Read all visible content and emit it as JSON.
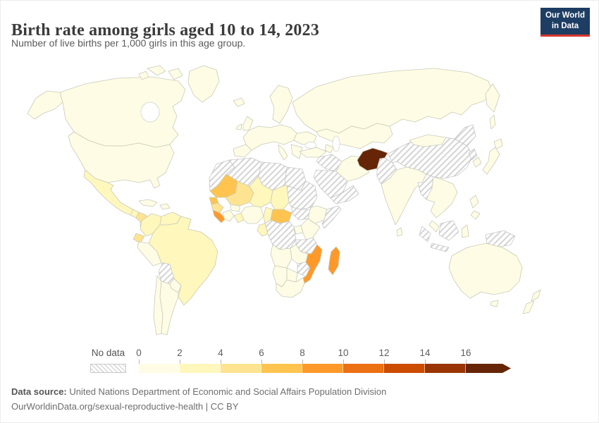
{
  "header": {
    "title": "Birth rate among girls aged 10 to 14, 2023",
    "subtitle": "Number of live births per 1,000 girls in this age group.",
    "logo_line1": "Our World",
    "logo_line2": "in Data",
    "logo_bg": "#1d3d63",
    "logo_accent": "#d7382e"
  },
  "legend": {
    "no_data_label": "No data",
    "tick_labels": [
      "0",
      "2",
      "4",
      "6",
      "8",
      "10",
      "12",
      "14",
      "16"
    ]
  },
  "footer": {
    "source_label": "Data source:",
    "source_text": " United Nations Department of Economic and Social Affairs Population Division",
    "link_text": "OurWorldinData.org/sexual-reproductive-health | CC BY"
  },
  "chart_data": {
    "type": "heatmap",
    "subtype": "world-choropleth",
    "title": "Birth rate among girls aged 10 to 14, 2023",
    "unit": "live births per 1,000 girls in this age group",
    "year": 2023,
    "legend_position": "bottom",
    "bins": [
      {
        "label": "0-2",
        "color": "#fefce4"
      },
      {
        "label": "2-4",
        "color": "#fff7bc"
      },
      {
        "label": "4-6",
        "color": "#fee391"
      },
      {
        "label": "6-8",
        "color": "#fec44f"
      },
      {
        "label": "8-10",
        "color": "#fe9929"
      },
      {
        "label": "10-12",
        "color": "#ec7014"
      },
      {
        "label": "12-14",
        "color": "#cc4c02"
      },
      {
        "label": "14-16",
        "color": "#993404"
      },
      {
        "label": "16+",
        "color": "#662506"
      },
      {
        "label": "no-data",
        "color": "hatch"
      }
    ],
    "countries": {
      "united-states": "0-2",
      "canada": "0-2",
      "greenland": "0-2",
      "mexico": "2-4",
      "guatemala": "2-4",
      "honduras-nicaragua": "4-6",
      "costa-rica-panama": "0-2",
      "cuba": "0-2",
      "hispaniola": "0-2",
      "colombia": "2-4",
      "venezuela": "2-4",
      "guyanas": "0-2",
      "ecuador": "4-6",
      "peru": "0-2",
      "brazil": "2-4",
      "bolivia": "no-data",
      "paraguay": "0-2",
      "chile": "0-2",
      "argentina": "0-2",
      "europe": "0-2",
      "russia": "0-2",
      "kazakhstan-central-asia": "0-2",
      "turkey": "0-2",
      "caucasus": "0-2",
      "syria-iraq": "no-data",
      "saudi-arabia": "no-data",
      "yemen-oman": "no-data",
      "iran": "0-2",
      "afghanistan": "16+",
      "pakistan": "no-data",
      "india": "0-2",
      "sri-lanka": "0-2",
      "china": "no-data",
      "mongolia": "0-2",
      "north-korea": "no-data",
      "south-korea": "0-2",
      "japan": "0-2",
      "myanmar": "no-data",
      "indochina": "0-2",
      "malaysia": "0-2",
      "philippines": "0-2",
      "indonesia": "no-data",
      "sulawesi": "0-2",
      "papua-new-guinea": "no-data",
      "australia": "0-2",
      "new-zealand": "0-2",
      "morocco-western-sahara": "no-data",
      "algeria": "no-data",
      "libya": "no-data",
      "egypt": "no-data",
      "mauritania": "6-8",
      "mali": "4-6",
      "niger": "2-4",
      "chad": "2-4",
      "sudan": "no-data",
      "senegal": "6-8",
      "guinea": "4-6",
      "sierra-leone-liberia": "8-10",
      "ivory-coast": "0-2",
      "ghana-togo-benin": "2-4",
      "burkina-faso": "0-2",
      "nigeria": "0-2",
      "cameroon": "2-4",
      "central-african-republic": "6-8",
      "south-sudan": "no-data",
      "ethiopia": "0-2",
      "somalia": "no-data",
      "dr-congo": "no-data",
      "gabon-congo": "2-4",
      "uganda": "0-2",
      "kenya": "0-2",
      "tanzania": "no-data",
      "angola": "0-2",
      "zambia": "0-2",
      "zimbabwe": "no-data",
      "mozambique": "8-10",
      "botswana": "0-2",
      "namibia": "0-2",
      "south-africa": "0-2",
      "madagascar": "8-10"
    }
  }
}
